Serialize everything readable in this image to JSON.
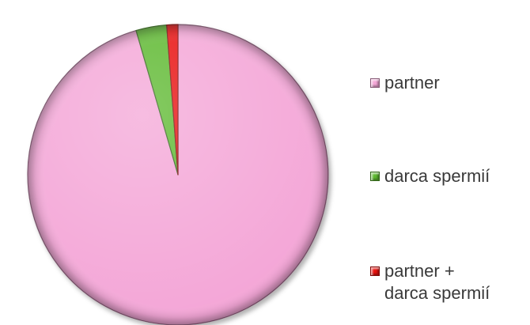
{
  "chart_data": {
    "type": "pie",
    "title": "",
    "slices": [
      {
        "label": "partner",
        "value": 95.5,
        "color": "#f4a6d7"
      },
      {
        "label": "darca spermií",
        "value": 3.3,
        "color": "#5cb82f"
      },
      {
        "label": "partner + darca spermií",
        "label_lines": [
          "partner +",
          "darca spermií"
        ],
        "value": 1.2,
        "color": "#e8100c"
      }
    ],
    "legend_position": "right",
    "style": "3d-beveled"
  }
}
